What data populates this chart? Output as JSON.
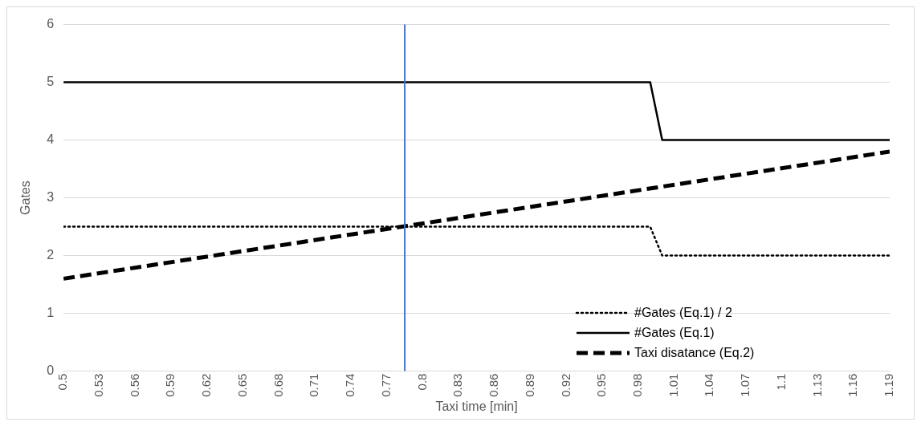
{
  "chart_data": {
    "type": "line",
    "xlabel": "Taxi time [min]",
    "ylabel": "Gates",
    "xlim": [
      0.5,
      1.19
    ],
    "xticks": [
      0.5,
      0.53,
      0.56,
      0.59,
      0.62,
      0.65,
      0.68,
      0.71,
      0.74,
      0.77,
      0.8,
      0.83,
      0.86,
      0.89,
      0.92,
      0.95,
      0.98,
      1.01,
      1.04,
      1.07,
      1.1,
      1.13,
      1.16,
      1.19
    ],
    "ylim": [
      0,
      6
    ],
    "yticks": [
      0,
      1,
      2,
      3,
      4,
      5,
      6
    ],
    "grid": "y",
    "legend": "bottom right",
    "marker": "none",
    "series": [
      {
        "name": "#Gates (Eq.1) / 2",
        "color": "#000000",
        "line_style": "dotted",
        "x": [
          0.5,
          0.99,
          1.0,
          1.19
        ],
        "values": [
          2.5,
          2.5,
          2,
          2
        ]
      },
      {
        "name": "#Gates (Eq.1)",
        "color": "#000000",
        "line_style": "solid",
        "x": [
          0.5,
          0.99,
          1.0,
          1.19
        ],
        "values": [
          5,
          5,
          4,
          4
        ]
      },
      {
        "name": "Taxi disatance (Eq.2)",
        "color": "#000000",
        "line_style": "dashed",
        "x": [
          0.5,
          1.19
        ],
        "values": [
          1.6,
          3.8
        ]
      }
    ],
    "ref_lines": [
      {
        "axis": "x",
        "value": 0.785,
        "color": "#4472c4"
      }
    ]
  }
}
